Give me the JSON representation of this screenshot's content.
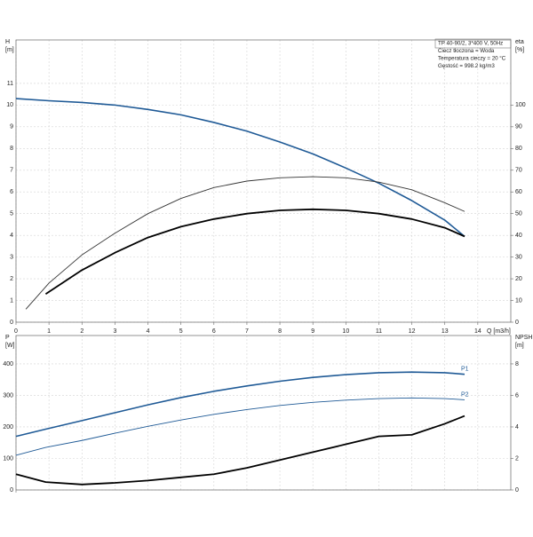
{
  "chart_data": [
    {
      "type": "line",
      "ylabel": "H",
      "yunit": "[m]",
      "y2label": "eta",
      "y2unit": "[%]",
      "xlabel": "Q [m3/h]",
      "annotations": [
        "TP 40-90/2, 3*400 V, 50Hz",
        "Ciecz tłoczona = Woda",
        "Temperatura cieczy = 20 °C",
        "Gęstość = 998.2 kg/m3"
      ],
      "xlim": [
        0,
        15
      ],
      "xticks": [
        0,
        1,
        2,
        3,
        4,
        5,
        6,
        7,
        8,
        9,
        10,
        11,
        12,
        13,
        14
      ],
      "ylim": [
        0,
        13
      ],
      "yticks": [
        0,
        1,
        2,
        3,
        4,
        5,
        6,
        7,
        8,
        9,
        10,
        11
      ],
      "y2lim": [
        0,
        130
      ],
      "y2ticks": [
        0,
        10,
        20,
        30,
        40,
        50,
        60,
        70,
        80,
        90,
        100
      ],
      "grid": true,
      "series": [
        {
          "color": "#1f5a96",
          "width": 1.6,
          "x": [
            0,
            1,
            2,
            3,
            4,
            5,
            6,
            7,
            8,
            9,
            10,
            11,
            12,
            13,
            13.6
          ],
          "values": [
            10.3,
            10.2,
            10.12,
            10.0,
            9.8,
            9.55,
            9.2,
            8.8,
            8.3,
            7.75,
            7.1,
            6.4,
            5.6,
            4.7,
            3.95
          ]
        },
        {
          "color": "#333333",
          "width": 0.9,
          "axis": "y2",
          "x": [
            0.3,
            1,
            2,
            3,
            4,
            5,
            6,
            7,
            8,
            9,
            10,
            11,
            12,
            13,
            13.6
          ],
          "values": [
            6,
            18,
            31,
            41,
            50,
            57,
            62,
            65,
            66.5,
            67,
            66.5,
            64.5,
            61,
            55,
            51
          ]
        },
        {
          "color": "#000000",
          "width": 1.8,
          "axis": "y2",
          "x": [
            0.9,
            2,
            3,
            4,
            5,
            6,
            7,
            8,
            9,
            10,
            11,
            12,
            13,
            13.6
          ],
          "values": [
            13,
            24,
            32,
            39,
            44,
            47.5,
            50,
            51.5,
            52,
            51.5,
            50,
            47.5,
            43.5,
            39.5
          ]
        }
      ]
    },
    {
      "type": "line",
      "ylabel": "P",
      "yunit": "[W]",
      "y2label": "NPSH",
      "y2unit": "[m]",
      "xlim": [
        0,
        15
      ],
      "xticks": [
        0,
        1,
        2,
        3,
        4,
        5,
        6,
        7,
        8,
        9,
        10,
        11,
        12,
        13,
        14
      ],
      "ylim": [
        0,
        490
      ],
      "yticks": [
        0,
        100,
        200,
        300,
        400
      ],
      "y2lim": [
        0,
        9.8
      ],
      "y2ticks": [
        0,
        2,
        4,
        6,
        8
      ],
      "grid": true,
      "series": [
        {
          "name": "P1",
          "color": "#1f5a96",
          "width": 1.6,
          "x": [
            0,
            0.9,
            2,
            3,
            4,
            5,
            6,
            7,
            8,
            9,
            10,
            11,
            12,
            13,
            13.6
          ],
          "values": [
            170,
            193,
            220,
            245,
            270,
            293,
            313,
            330,
            345,
            357,
            366,
            372,
            374,
            372,
            367
          ]
        },
        {
          "name": "P2",
          "color": "#1f5a96",
          "width": 0.9,
          "x": [
            0,
            0.9,
            2,
            3,
            4,
            5,
            6,
            7,
            8,
            9,
            10,
            11,
            12,
            13,
            13.6
          ],
          "values": [
            110,
            135,
            157,
            180,
            202,
            222,
            240,
            255,
            268,
            278,
            285,
            290,
            292,
            290,
            286
          ]
        },
        {
          "color": "#000000",
          "width": 1.8,
          "axis": "y2",
          "x": [
            0,
            0.9,
            2,
            3,
            4,
            5,
            6,
            7,
            8,
            9,
            10,
            11,
            12,
            13,
            13.6
          ],
          "values": [
            1.0,
            0.5,
            0.35,
            0.45,
            0.6,
            0.8,
            1.0,
            1.4,
            1.9,
            2.4,
            2.9,
            3.4,
            3.5,
            4.2,
            4.7
          ]
        }
      ]
    }
  ]
}
